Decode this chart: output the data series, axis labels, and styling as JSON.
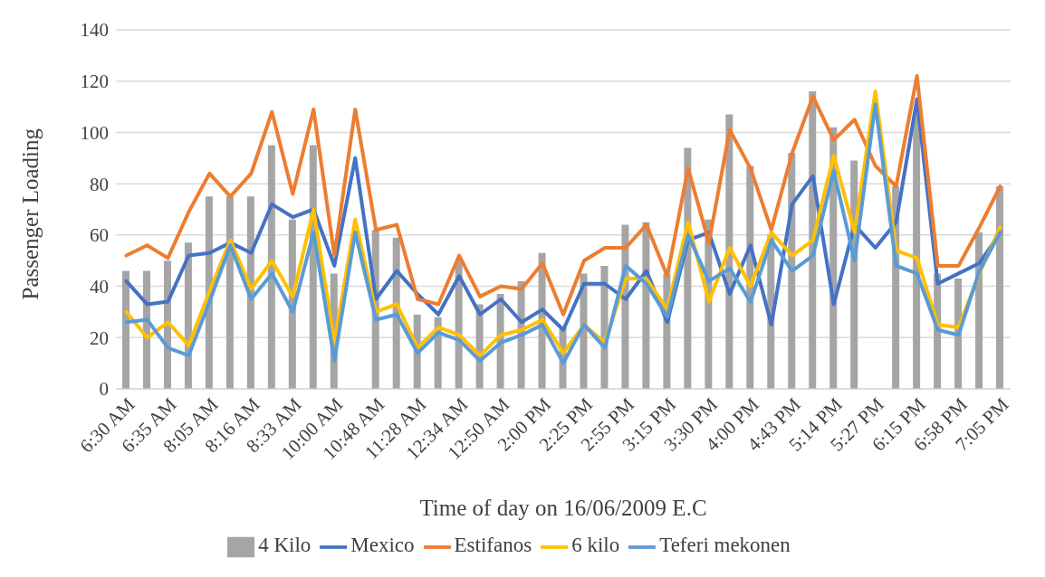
{
  "chart_data": {
    "type": "line",
    "xlabel": "Time of day on 16/06/2009 E.C",
    "ylabel": "Passenger Loading",
    "categories": [
      "6:30 AM",
      null,
      "6:35 AM",
      null,
      "8:05 AM",
      null,
      "8:16 AM",
      null,
      "8:33 AM",
      null,
      "10:00 AM",
      null,
      "10:48 AM",
      null,
      "11:28 AM",
      null,
      "12:34 AM",
      null,
      "12:50 AM",
      null,
      "2:00 PM",
      null,
      "2:25 PM",
      null,
      "2:55 PM",
      null,
      "3:15 PM",
      null,
      "3:30 PM",
      null,
      "4:00 PM",
      null,
      "4:43 PM",
      null,
      "5:14 PM",
      null,
      "5:27 PM",
      null,
      "6:15 PM",
      null,
      "6:58 PM",
      null,
      "7:05 PM"
    ],
    "series": [
      {
        "name": "4 Kilo",
        "type": "bar",
        "color": "#a5a5a5",
        "values": [
          46,
          46,
          50,
          57,
          75,
          75,
          75,
          95,
          66,
          95,
          45,
          null,
          62,
          59,
          29,
          28,
          50,
          33,
          37,
          42,
          53,
          24,
          45,
          48,
          64,
          65,
          45,
          94,
          66,
          107,
          87,
          60,
          92,
          116,
          102,
          89,
          null,
          79,
          107,
          45,
          43,
          61,
          79
        ]
      },
      {
        "name": "Mexico",
        "color": "#4472c4",
        "values": [
          42,
          33,
          34,
          52,
          53,
          57,
          53,
          72,
          67,
          70,
          48,
          90,
          35,
          46,
          37,
          29,
          44,
          29,
          35,
          26,
          31,
          23,
          41,
          41,
          35,
          46,
          26,
          58,
          61,
          37,
          56,
          25,
          72,
          83,
          33,
          64,
          55,
          65,
          113,
          41,
          45,
          49,
          61
        ]
      },
      {
        "name": "Estifanos",
        "color": "#ed7d31",
        "values": [
          52,
          56,
          51,
          69,
          84,
          75,
          84,
          108,
          76,
          109,
          52,
          109,
          62,
          64,
          35,
          33,
          52,
          36,
          40,
          39,
          49,
          29,
          50,
          55,
          55,
          64,
          44,
          86,
          57,
          101,
          86,
          62,
          92,
          114,
          97,
          105,
          87,
          79,
          122,
          48,
          48,
          63,
          79
        ]
      },
      {
        "name": "6 kilo",
        "color": "#ffc000",
        "values": [
          30,
          20,
          26,
          17,
          38,
          58,
          39,
          50,
          36,
          70,
          18,
          66,
          30,
          33,
          16,
          24,
          21,
          13,
          21,
          23,
          27,
          14,
          25,
          18,
          43,
          43,
          31,
          65,
          34,
          55,
          40,
          61,
          52,
          58,
          91,
          61,
          116,
          54,
          51,
          25,
          24,
          45,
          63
        ]
      },
      {
        "name": "Teferi mekonen",
        "color": "#5b9bd5",
        "values": [
          26,
          27,
          16,
          13,
          34,
          56,
          35,
          45,
          30,
          61,
          11,
          61,
          27,
          29,
          14,
          22,
          19,
          11,
          18,
          21,
          25,
          10,
          25,
          16,
          48,
          41,
          28,
          60,
          42,
          47,
          34,
          58,
          46,
          52,
          85,
          50,
          111,
          48,
          45,
          23,
          21,
          46,
          61
        ]
      }
    ],
    "ylim": [
      0,
      140
    ],
    "yticks": [
      0,
      20,
      40,
      60,
      80,
      100,
      120,
      140
    ],
    "grid": "y",
    "legend": "bottom",
    "marker": "none"
  }
}
